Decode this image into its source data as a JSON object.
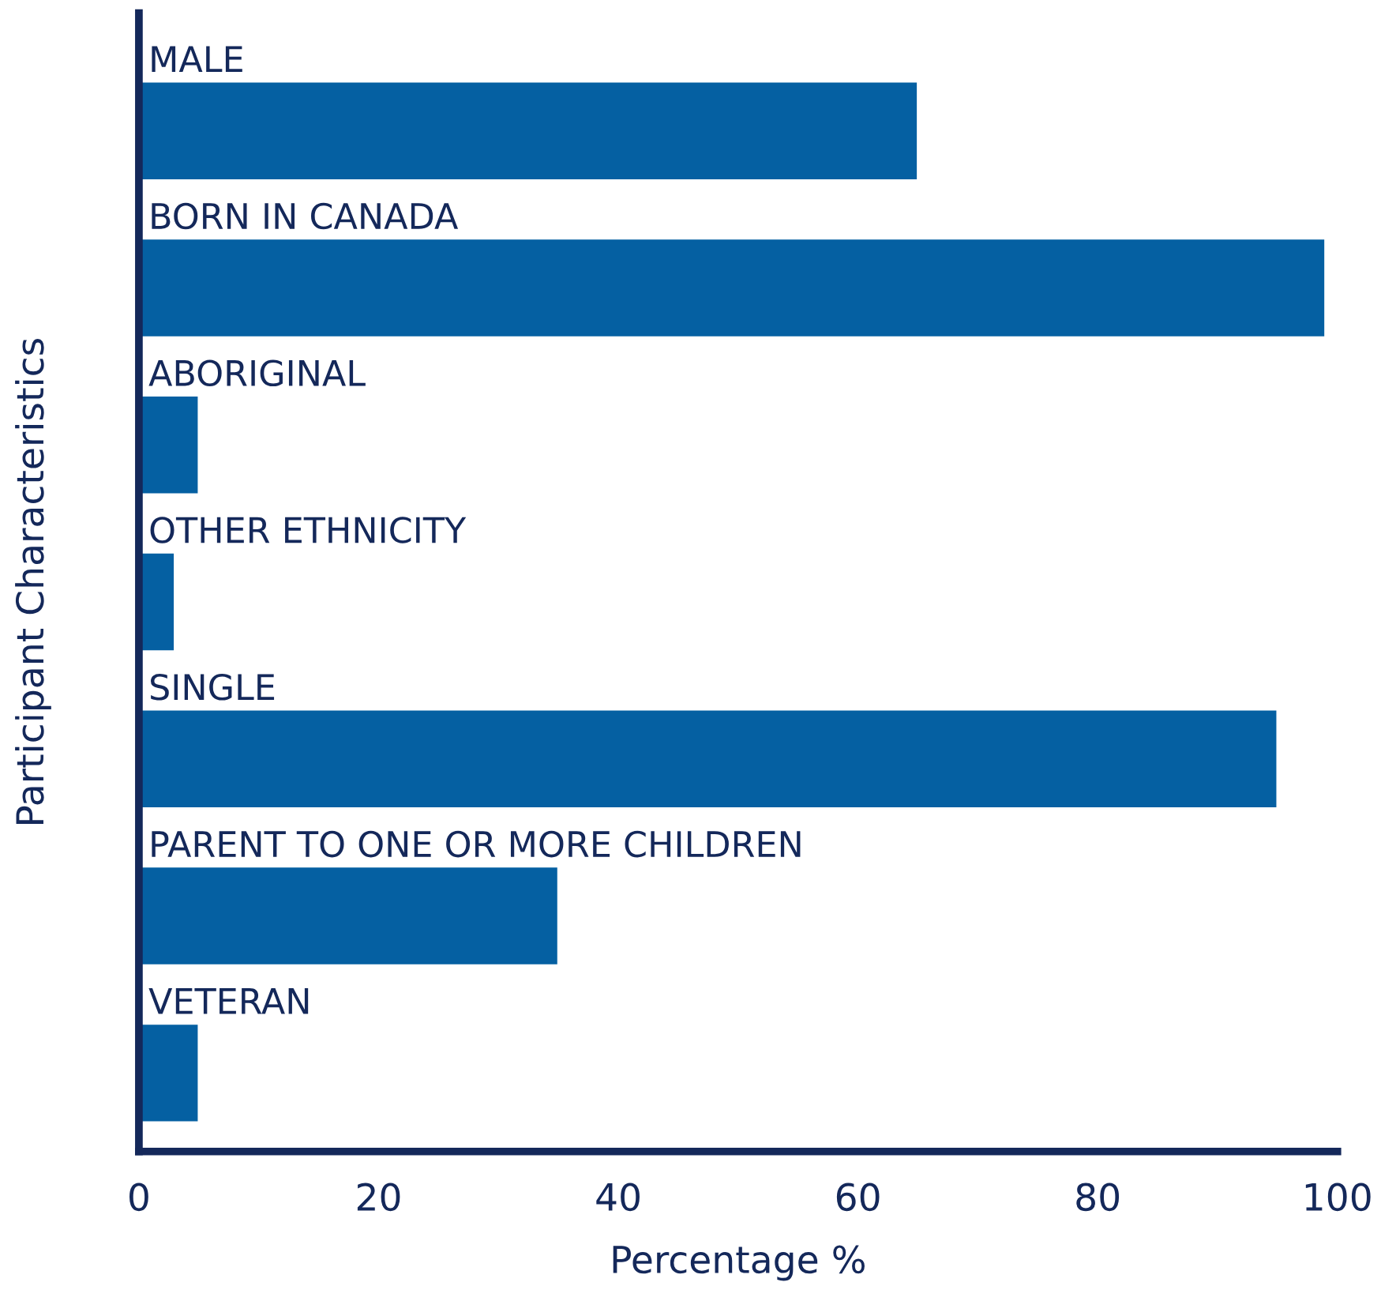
{
  "chart_data": {
    "type": "bar",
    "orientation": "horizontal",
    "xlabel": "Percentage %",
    "ylabel": "Participant Characteristics",
    "categories": [
      "MALE",
      "BORN IN CANADA",
      "ABORIGINAL",
      "OTHER ETHNICITY",
      "SINGLE",
      "PARENT TO ONE OR MORE CHILDREN",
      "VETERAN"
    ],
    "values": [
      65,
      99,
      5,
      3,
      95,
      35,
      5
    ],
    "color": "#0560a2",
    "xlim": [
      0,
      100
    ],
    "xticks": [
      0,
      20,
      40,
      60,
      80,
      100
    ],
    "grid": false,
    "legend": false
  }
}
